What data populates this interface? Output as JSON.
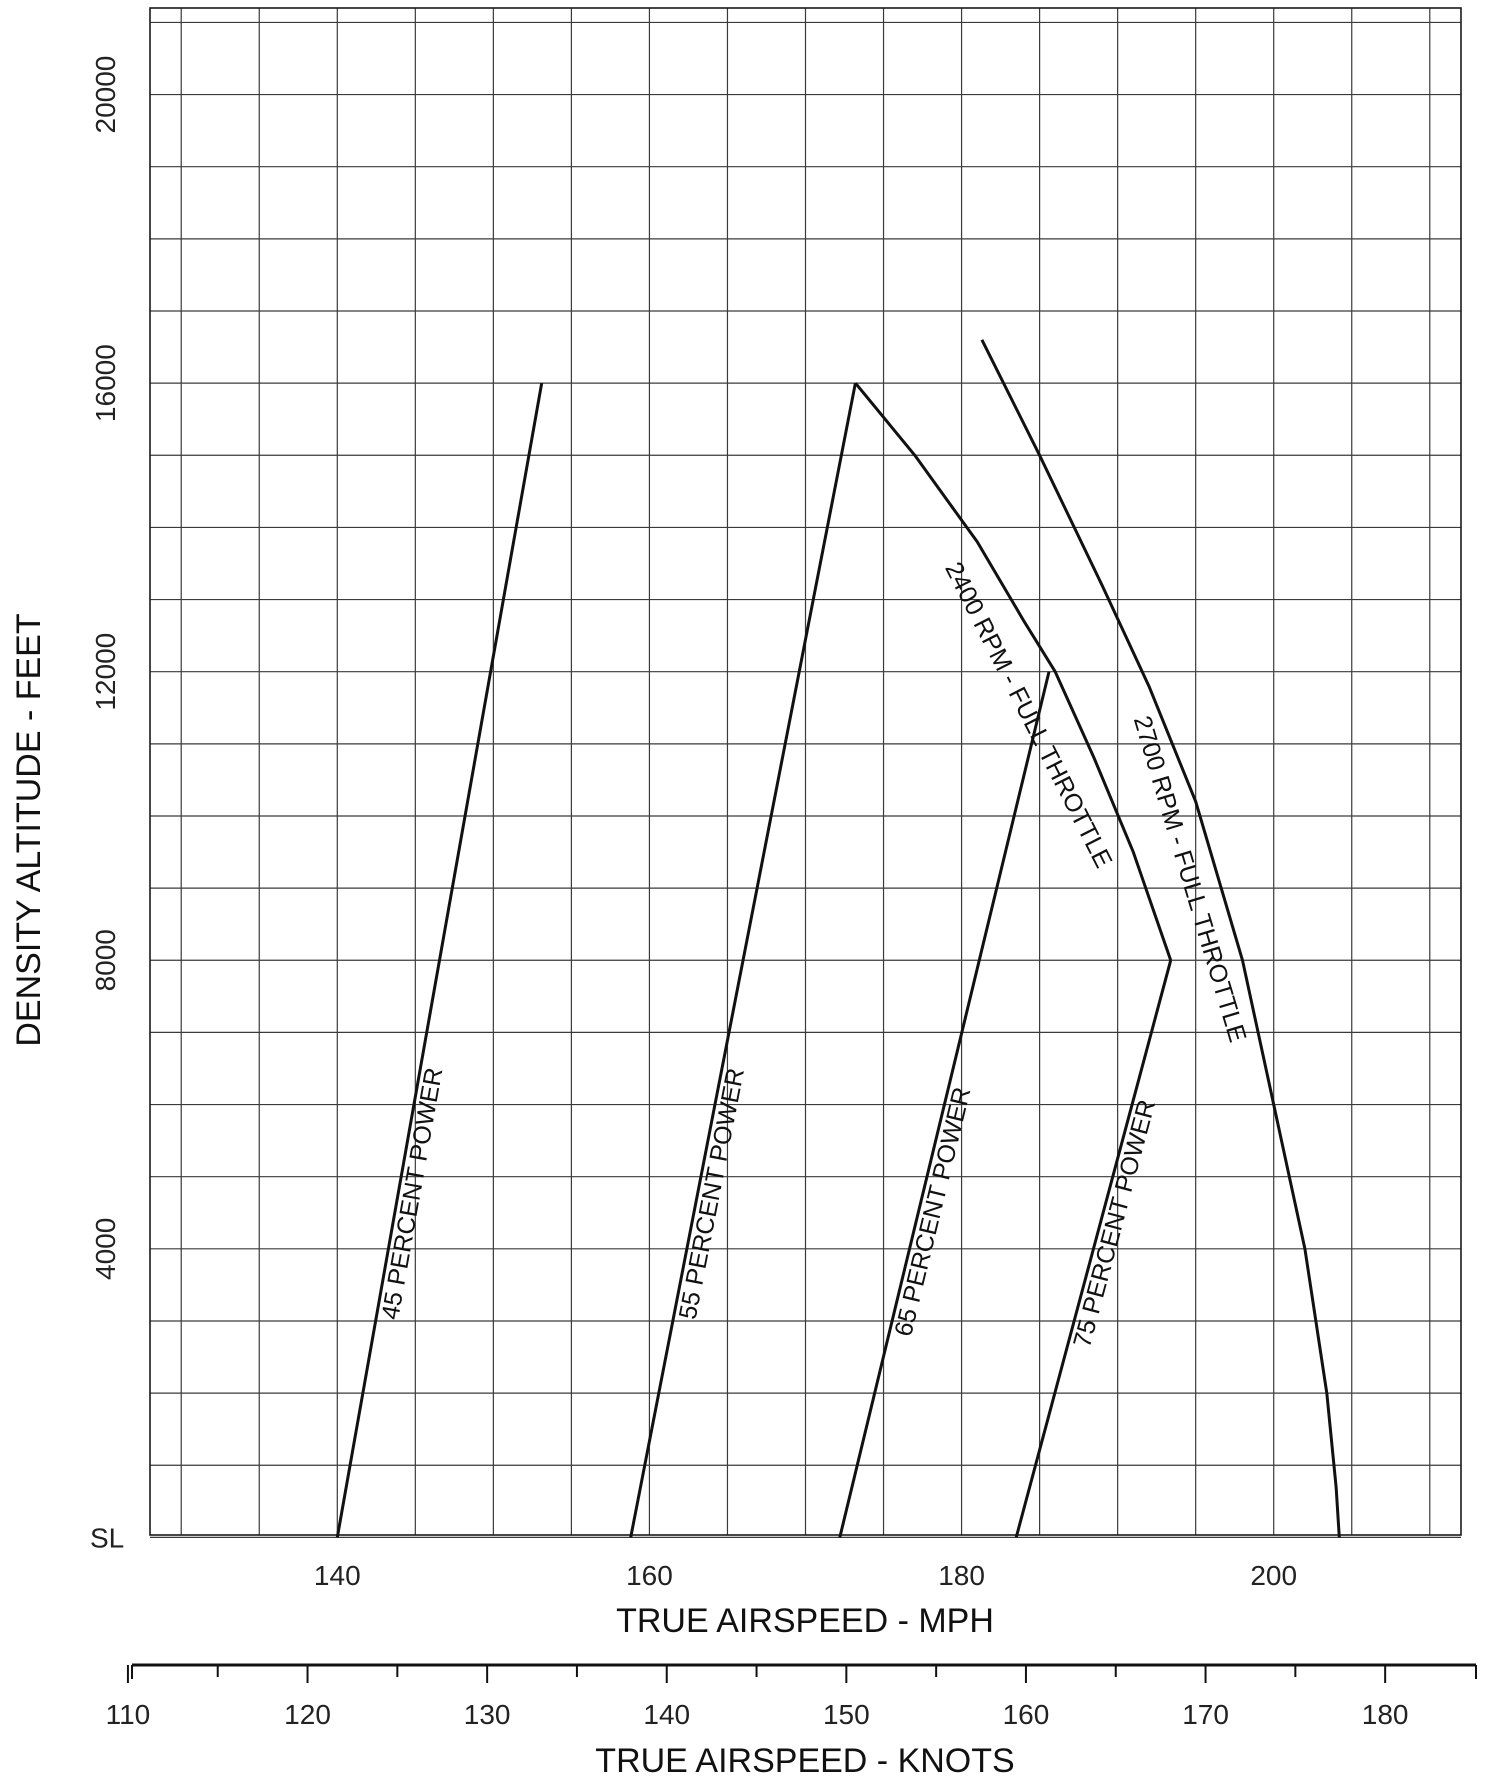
{
  "chart_data": {
    "type": "line",
    "title": "",
    "xlabel": "TRUE AIRSPEED - MPH",
    "ylabel": "DENSITY ALTITUDE - FEET",
    "x2label": "TRUE AIRSPEED - KNOTS",
    "xlim": [
      128,
      212
    ],
    "ylim": [
      -50,
      21200
    ],
    "y_ticks": [
      {
        "value": 0,
        "label": "SL"
      },
      {
        "value": 4000,
        "label": "4000"
      },
      {
        "value": 8000,
        "label": "8000"
      },
      {
        "value": 12000,
        "label": "12000"
      },
      {
        "value": 16000,
        "label": "16000"
      },
      {
        "value": 20000,
        "label": "20000"
      }
    ],
    "x_ticks": [
      140,
      160,
      180,
      200
    ],
    "x2_ticks": [
      110,
      120,
      130,
      140,
      150,
      160,
      170,
      180
    ],
    "grid": true,
    "series": [
      {
        "name": "45 PERCENT POWER",
        "x": [
          140,
          153.1
        ],
        "y": [
          0,
          16000
        ]
      },
      {
        "name": "55 PERCENT POWER",
        "x": [
          158.8,
          173.2
        ],
        "y": [
          0,
          16000
        ]
      },
      {
        "name": "65 PERCENT POWER",
        "x": [
          172.2,
          185.6
        ],
        "y": [
          0,
          12000
        ]
      },
      {
        "name": "75 PERCENT POWER",
        "x": [
          183.5,
          193.4
        ],
        "y": [
          0,
          8000
        ]
      },
      {
        "name": "2400 RPM - FULL THROTTLE",
        "x": [
          173.2,
          177,
          181,
          184,
          186,
          188.5,
          191,
          193.4
        ],
        "y": [
          16000,
          15000,
          13800,
          12700,
          12000,
          10800,
          9500,
          8000
        ]
      },
      {
        "name": "2700 RPM - FULL THROTTLE",
        "x": [
          181.3,
          185,
          189,
          192,
          195,
          198,
          200,
          202,
          203.4,
          204,
          204.2
        ],
        "y": [
          16600,
          15000,
          13200,
          11800,
          10200,
          8000,
          6000,
          4000,
          2000,
          700,
          0
        ]
      }
    ]
  }
}
